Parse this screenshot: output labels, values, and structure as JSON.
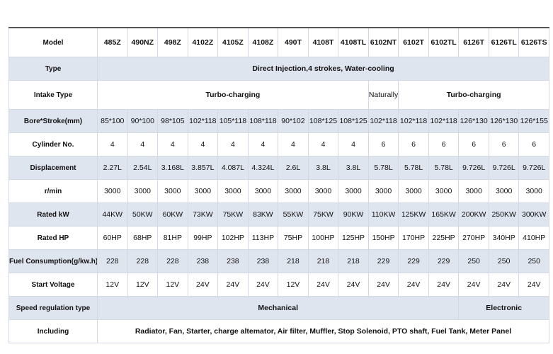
{
  "table": {
    "header": [
      "Model",
      "485Z",
      "490NZ",
      "498Z",
      "4102Z",
      "4105Z",
      "4108Z",
      "490T",
      "4108T",
      "4108TL",
      "6102NT",
      "6102T",
      "6102TL",
      "6126T",
      "6126TL",
      "6126TS"
    ],
    "rows": [
      [
        "Type",
        "Direct Injection,4 strokes, Water-cooling"
      ],
      [
        "Intake Type",
        "Turbo-charging",
        "Naturally",
        "Turbo-charging"
      ],
      [
        "Bore*Stroke(mm)",
        "85*100",
        "90*100",
        "98*105",
        "102*118",
        "105*118",
        "108*118",
        "90*102",
        "108*125",
        "108*125",
        "102*118",
        "102*118",
        "102*118",
        "126*130",
        "126*130",
        "126*155"
      ],
      [
        "Cylinder No.",
        4,
        4,
        4,
        4,
        4,
        4,
        4,
        4,
        4,
        6,
        6,
        6,
        6,
        6,
        6
      ],
      [
        "Displacement",
        "2.27L",
        "2.54L",
        "3.168L",
        "3.857L",
        "4.087L",
        "4.324L",
        "2.6L",
        "3.8L",
        "3.8L",
        "5.78L",
        "5.78L",
        "5.78L",
        "9.726L",
        "9.726L",
        "9.726L"
      ],
      [
        "r/min",
        3000,
        3000,
        3000,
        3000,
        3000,
        3000,
        3000,
        3000,
        3000,
        3000,
        3000,
        3000,
        3000,
        3000,
        3000
      ],
      [
        "Rated kW",
        "44KW",
        "50KW",
        "60KW",
        "73KW",
        "75KW",
        "83KW",
        "55KW",
        "75KW",
        "90KW",
        "110KW",
        "125KW",
        "165KW",
        "200KW",
        "250KW",
        "300KW"
      ],
      [
        "Rated HP",
        "60HP",
        "68HP",
        "81HP",
        "99HP",
        "102HP",
        "113HP",
        "75HP",
        "100HP",
        "125HP",
        "150HP",
        "170HP",
        "225HP",
        "270HP",
        "340HP",
        "410HP"
      ],
      [
        "Fuel Consumption(g/kw.h)",
        228,
        228,
        228,
        238,
        238,
        238,
        218,
        218,
        218,
        229,
        229,
        229,
        250,
        250,
        250
      ],
      [
        "Start Voltage",
        "12V",
        "12V",
        "12V",
        "24V",
        "24V",
        "24V",
        "12V",
        "24V",
        "24V",
        "24V",
        "24V",
        "24V",
        "24V",
        "24V",
        "24V"
      ],
      [
        "Speed regulation type",
        "Mechanical",
        "Electronic"
      ],
      [
        "Including",
        "Radiator, Fan, Starter, charge altemator, Air filter, Muffler, Stop Solenoid, PTO shaft, Fuel Tank, Meter Panel"
      ]
    ]
  }
}
